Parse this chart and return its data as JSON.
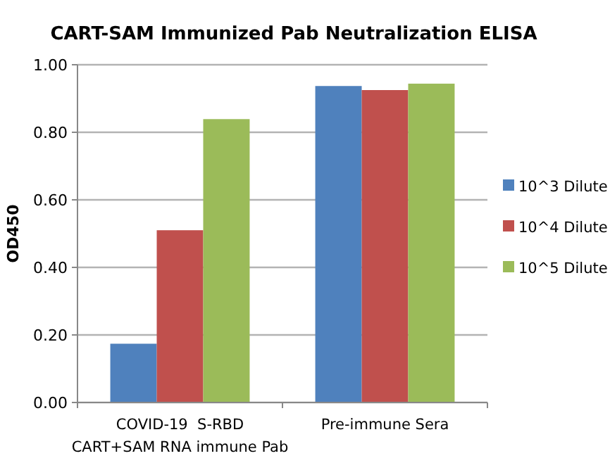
{
  "chart_data": {
    "type": "bar",
    "title": "CART-SAM Immunized Pab Neutralization ELISA",
    "ylabel": "OD450",
    "categories": [
      "COVID-19  S-RBD\nCART+SAM RNA immune Pab",
      "Pre-immune Sera"
    ],
    "series": [
      {
        "name": "10^3 Dilute",
        "color": "#4f81bd",
        "values": [
          0.174,
          0.937
        ]
      },
      {
        "name": "10^4 Dilute",
        "color": "#c0504d",
        "values": [
          0.51,
          0.925
        ]
      },
      {
        "name": "10^5 Dilute",
        "color": "#9bbb59",
        "values": [
          0.839,
          0.944
        ]
      }
    ],
    "ylim": [
      0,
      1
    ],
    "yticks": [
      {
        "value": 0,
        "label": "0.00"
      },
      {
        "value": 0.2,
        "label": "0.20"
      },
      {
        "value": 0.4,
        "label": "0.40"
      },
      {
        "value": 0.6,
        "label": "0.60"
      },
      {
        "value": 0.8,
        "label": "0.80"
      },
      {
        "value": 1,
        "label": "1.00"
      }
    ],
    "grid": "y",
    "legend": "right"
  }
}
